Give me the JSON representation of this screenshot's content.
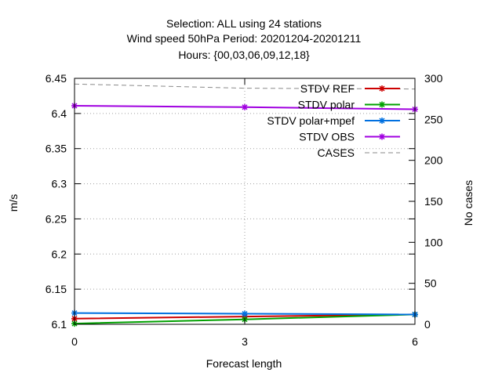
{
  "chart_data": {
    "type": "line",
    "title_lines": [
      "Selection: ALL using    24 stations",
      "Wind speed 50hPa   Period: 20201204-20201211",
      "Hours: {00,03,06,09,12,18}"
    ],
    "xlabel": "Forecast length",
    "ylabel": "m/s",
    "y2label": "No cases",
    "x": [
      0,
      3,
      6
    ],
    "xlim": [
      0,
      6
    ],
    "ylim": [
      6.1,
      6.45
    ],
    "y2lim": [
      0,
      300
    ],
    "xticks": [
      "0",
      "3",
      "6"
    ],
    "yticks": [
      "6.1",
      "6.15",
      "6.2",
      "6.25",
      "6.3",
      "6.35",
      "6.4",
      "6.45"
    ],
    "y2ticks": [
      "0",
      "50",
      "100",
      "150",
      "200",
      "250",
      "300"
    ],
    "grid": true,
    "legend_position": "top-right",
    "series": [
      {
        "name": "STDV REF",
        "axis": "y1",
        "values": [
          6.108,
          6.111,
          6.114
        ],
        "color": "#cc0000",
        "marker": "x"
      },
      {
        "name": "STDV polar",
        "axis": "y1",
        "values": [
          6.101,
          6.107,
          6.114
        ],
        "color": "#00a000",
        "marker": "x"
      },
      {
        "name": "STDV polar+mpef",
        "axis": "y1",
        "values": [
          6.116,
          6.115,
          6.114
        ],
        "color": "#0070e0",
        "marker": "x"
      },
      {
        "name": "STDV OBS",
        "axis": "y1",
        "values": [
          6.411,
          6.409,
          6.406
        ],
        "color": "#a000e0",
        "marker": "x"
      },
      {
        "name": "CASES",
        "axis": "y2",
        "values": [
          293,
          288,
          287
        ],
        "color": "#8a8a8a",
        "dashed": true
      }
    ]
  }
}
